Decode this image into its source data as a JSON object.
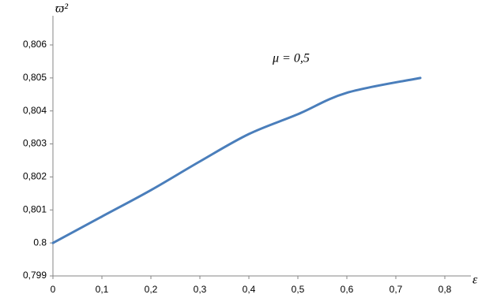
{
  "chart_data": {
    "type": "line",
    "y_axis_label": "ϖ²",
    "x_axis_label": "ε",
    "annotation": "μ = 0,5",
    "x": [
      0,
      0.1,
      0.2,
      0.3,
      0.4,
      0.5,
      0.6,
      0.75
    ],
    "series": [
      {
        "name": "μ = 0,5",
        "color": "#4a7ebb",
        "values": [
          0.8,
          0.8008,
          0.8016,
          0.80247,
          0.8033,
          0.8039,
          0.80455,
          0.805
        ]
      }
    ],
    "xlim": [
      0,
      0.8
    ],
    "xticks": [
      0,
      {
        "value": 0.1,
        "label": "0,1"
      },
      {
        "value": 0.2,
        "label": "0,2"
      },
      {
        "value": 0.3,
        "label": "0,3"
      },
      {
        "value": 0.4,
        "label": "0,4"
      },
      {
        "value": 0.5,
        "label": "0,5"
      },
      {
        "value": 0.6,
        "label": "0,6"
      },
      {
        "value": 0.7,
        "label": "0,7"
      },
      {
        "value": 0.8,
        "label": "0,8"
      }
    ],
    "ylim": [
      0.799,
      0.806
    ],
    "yticks": [
      {
        "value": 0.799,
        "label": "0,799"
      },
      0.8,
      {
        "value": 0.801,
        "label": "0,801"
      },
      {
        "value": 0.802,
        "label": "0,802"
      },
      {
        "value": 0.803,
        "label": "0,803"
      },
      {
        "value": 0.804,
        "label": "0,804"
      },
      {
        "value": 0.805,
        "label": "0,805"
      },
      {
        "value": 0.806,
        "label": "0,806"
      }
    ],
    "grid": false
  }
}
